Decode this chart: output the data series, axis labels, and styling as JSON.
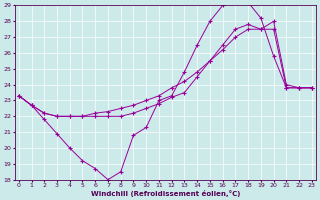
{
  "xlabel": "Windchill (Refroidissement éolien,°C)",
  "background_color": "#cceaea",
  "line_color": "#990099",
  "ylim": [
    18,
    29
  ],
  "xlim": [
    -0.3,
    23.3
  ],
  "yticks": [
    18,
    19,
    20,
    21,
    22,
    23,
    24,
    25,
    26,
    27,
    28,
    29
  ],
  "xticks": [
    0,
    1,
    2,
    3,
    4,
    5,
    6,
    7,
    8,
    9,
    10,
    11,
    12,
    13,
    14,
    15,
    16,
    17,
    18,
    19,
    20,
    21,
    22,
    23
  ],
  "line1_x": [
    0,
    1,
    2,
    3,
    4,
    5,
    6,
    7,
    8,
    9,
    10,
    11,
    12,
    13,
    14,
    15,
    16,
    17,
    18,
    19,
    20,
    21,
    22,
    23
  ],
  "line1_y": [
    23.3,
    22.7,
    21.8,
    20.9,
    20.0,
    19.2,
    18.7,
    18.0,
    18.5,
    20.8,
    21.3,
    23.0,
    23.3,
    24.8,
    26.5,
    28.0,
    29.0,
    29.2,
    29.2,
    28.2,
    25.8,
    23.8,
    23.8,
    23.8
  ],
  "line2_x": [
    0,
    1,
    2,
    3,
    4,
    5,
    6,
    7,
    8,
    9,
    10,
    11,
    12,
    13,
    14,
    15,
    16,
    17,
    18,
    19,
    20,
    21,
    22,
    23
  ],
  "line2_y": [
    23.3,
    22.7,
    22.2,
    22.0,
    22.0,
    22.0,
    22.0,
    22.0,
    22.0,
    22.2,
    22.5,
    22.8,
    23.2,
    23.5,
    24.5,
    25.5,
    26.5,
    27.5,
    27.8,
    27.5,
    27.5,
    23.8,
    23.8,
    23.8
  ],
  "line3_x": [
    0,
    1,
    2,
    3,
    4,
    5,
    6,
    7,
    8,
    9,
    10,
    11,
    12,
    13,
    14,
    15,
    16,
    17,
    18,
    19,
    20,
    21,
    22,
    23
  ],
  "line3_y": [
    23.3,
    22.7,
    22.2,
    22.0,
    22.0,
    22.0,
    22.2,
    22.3,
    22.5,
    22.7,
    23.0,
    23.3,
    23.8,
    24.2,
    24.8,
    25.5,
    26.2,
    27.0,
    27.5,
    27.5,
    28.0,
    24.0,
    23.8,
    23.8
  ]
}
